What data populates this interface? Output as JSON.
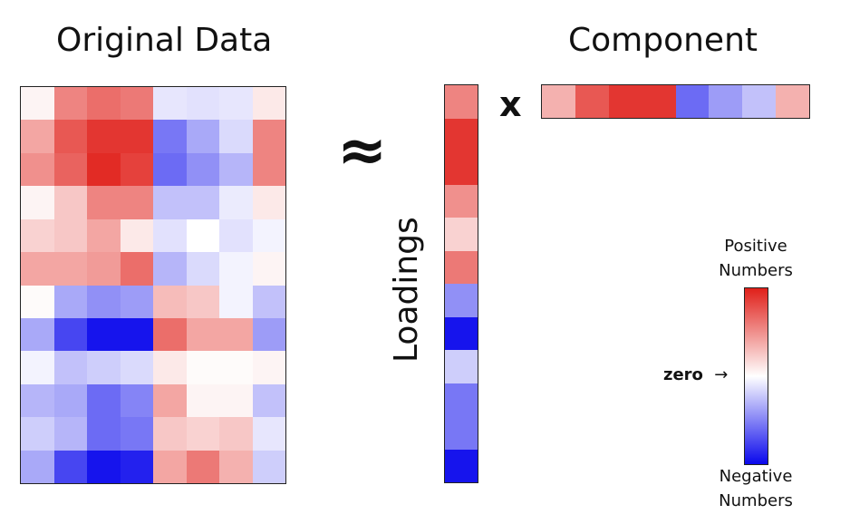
{
  "left_panel": {
    "title": "Original Data",
    "matrix": [
      [
        0.05,
        0.55,
        0.65,
        0.6,
        -0.1,
        -0.12,
        -0.1,
        0.1
      ],
      [
        0.4,
        0.75,
        0.9,
        0.9,
        -0.55,
        -0.35,
        -0.15,
        0.55
      ],
      [
        0.5,
        0.7,
        0.95,
        0.85,
        -0.6,
        -0.45,
        -0.3,
        0.55
      ],
      [
        0.05,
        0.25,
        0.55,
        0.55,
        -0.25,
        -0.25,
        -0.08,
        0.1
      ],
      [
        0.2,
        0.25,
        0.4,
        0.1,
        -0.12,
        0.0,
        -0.12,
        -0.05
      ],
      [
        0.4,
        0.4,
        0.45,
        0.65,
        -0.3,
        -0.15,
        -0.05,
        0.05
      ],
      [
        0.02,
        -0.35,
        -0.45,
        -0.4,
        0.3,
        0.25,
        -0.05,
        -0.25
      ],
      [
        -0.35,
        -0.75,
        -0.95,
        -0.95,
        0.65,
        0.4,
        0.4,
        -0.4
      ],
      [
        -0.05,
        -0.25,
        -0.2,
        -0.15,
        0.1,
        0.02,
        0.02,
        0.05
      ],
      [
        -0.3,
        -0.35,
        -0.6,
        -0.5,
        0.4,
        0.05,
        0.05,
        -0.25
      ],
      [
        -0.2,
        -0.3,
        -0.6,
        -0.55,
        0.25,
        0.2,
        0.25,
        -0.1
      ],
      [
        -0.35,
        -0.75,
        -0.95,
        -0.9,
        0.4,
        0.6,
        0.35,
        -0.2
      ]
    ]
  },
  "approx_symbol": "≈",
  "loadings": {
    "label": "Loadings",
    "values": [
      0.55,
      0.9,
      0.9,
      0.5,
      0.2,
      0.6,
      -0.45,
      -0.95,
      -0.2,
      -0.55,
      -0.55,
      -0.95
    ]
  },
  "multiply_symbol": "x",
  "component": {
    "title": "Component",
    "values": [
      0.35,
      0.75,
      0.9,
      0.9,
      -0.6,
      -0.4,
      -0.25,
      0.35
    ]
  },
  "legend": {
    "top_label_line1": "Positive",
    "top_label_line2": "Numbers",
    "zero_label": "zero",
    "arrow": "→",
    "bottom_label_line1": "Negative",
    "bottom_label_line2": "Numbers",
    "positive_color": "#e0201a",
    "zero_color": "#ffffff",
    "negative_color": "#0a08ec"
  }
}
